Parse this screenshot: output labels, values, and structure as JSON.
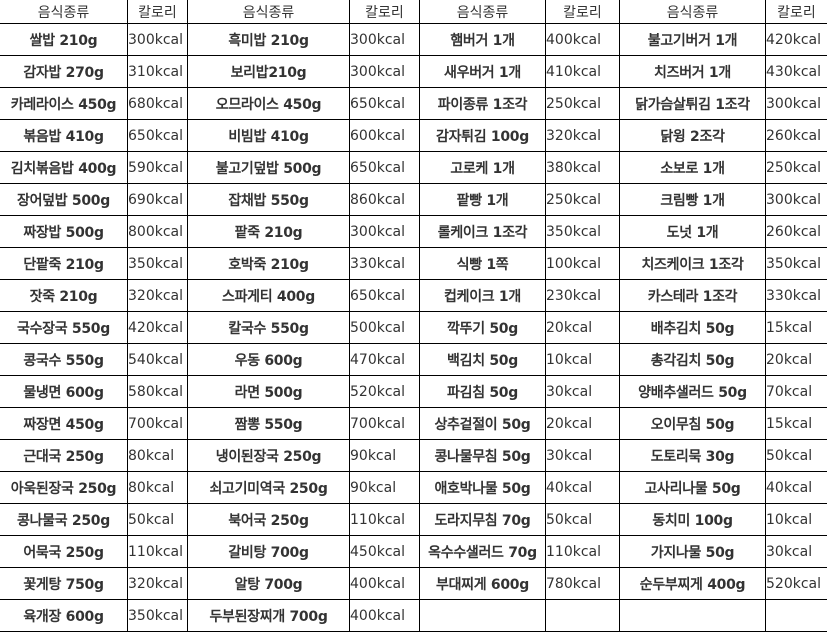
{
  "headers": [
    "음식종류",
    "칼로리",
    "음식종류",
    "칼로리",
    "음식종류",
    "칼로리",
    "음식종류",
    "칼로리"
  ],
  "rows": [
    [
      "쌀밥 210g",
      "300kcal",
      "흑미밥 210g",
      "300kcal",
      "햄버거 1개",
      "400kcal",
      "불고기버거 1개",
      "420kcal"
    ],
    [
      "감자밥 270g",
      "310kcal",
      "보리밥210g",
      "300kcal",
      "새우버거 1개",
      "410kcal",
      "치즈버거 1개",
      "430kcal"
    ],
    [
      "카레라이스 450g",
      "680kcal",
      "오므라이스 450g",
      "650kcal",
      "파이종류 1조각",
      "250kcal",
      "닭가슴살튀김 1조각",
      "300kcal"
    ],
    [
      "볶음밥 410g",
      "650kcal",
      "비빔밥 410g",
      "600kcal",
      "감자튀김 100g",
      "320kcal",
      "닭윙 2조각",
      "260kcal"
    ],
    [
      "김치볶음밥 400g",
      "590kcal",
      "불고기덮밥 500g",
      "650kcal",
      "고로케 1개",
      "380kcal",
      "소보로 1개",
      "250kcal"
    ],
    [
      "장어덮밥 500g",
      "690kcal",
      "잡채밥 550g",
      "860kcal",
      "팥빵 1개",
      "250kcal",
      "크림빵 1개",
      "300kcal"
    ],
    [
      "짜장밥 500g",
      "800kcal",
      "팥죽 210g",
      "300kcal",
      "롤케이크 1조각",
      "350kcal",
      "도넛 1개",
      "260kcal"
    ],
    [
      "단팥죽 210g",
      "350kcal",
      "호박죽 210g",
      "330kcal",
      "식빵 1쪽",
      "100kcal",
      "치즈케이크 1조각",
      "350kcal"
    ],
    [
      "잣죽 210g",
      "320kcal",
      "스파게티 400g",
      "650kcal",
      "컵케이크 1개",
      "230kcal",
      "카스테라 1조각",
      "330kcal"
    ],
    [
      "국수장국 550g",
      "420kcal",
      "칼국수 550g",
      "500kcal",
      "깍뚜기 50g",
      "20kcal",
      "배추김치 50g",
      "15kcal"
    ],
    [
      "콩국수 550g",
      "540kcal",
      "우동 600g",
      "470kcal",
      "백김치 50g",
      "10kcal",
      "총각김치 50g",
      "20kcal"
    ],
    [
      "물냉면 600g",
      "580kcal",
      "라면 500g",
      "520kcal",
      "파김침 50g",
      "30kcal",
      "양배추샐러드 50g",
      "70kcal"
    ],
    [
      "짜장면 450g",
      "700kcal",
      "짬뽕 550g",
      "700kcal",
      "상추겉절이 50g",
      "20kcal",
      "오이무침 50g",
      "15kcal"
    ],
    [
      "근대국 250g",
      "80kcal",
      "냉이된장국 250g",
      "90kcal",
      "콩나물무침 50g",
      "30kcal",
      "도토리묵 30g",
      "50kcal"
    ],
    [
      "아욱된장국 250g",
      "80kcal",
      "쇠고기미역국 250g",
      "90kcal",
      "애호박나물 50g",
      "40kcal",
      "고사리나물 50g",
      "40kcal"
    ],
    [
      "콩나물국 250g",
      "50kcal",
      "북어국 250g",
      "110kcal",
      "도라지무침 70g",
      "50kcal",
      "동치미 100g",
      "10kcal"
    ],
    [
      "어묵국 250g",
      "110kcal",
      "갈비탕 700g",
      "450kcal",
      "옥수수샐러드 70g",
      "110kcal",
      "가지나물 50g",
      "30kcal"
    ],
    [
      "꽃게탕 750g",
      "320kcal",
      "알탕 700g",
      "400kcal",
      "부대찌게 600g",
      "780kcal",
      "순두부찌게 400g",
      "520kcal"
    ],
    [
      "육개장 600g",
      "350kcal",
      "두부된장찌개 700g",
      "400kcal",
      "",
      "",
      "",
      ""
    ]
  ]
}
